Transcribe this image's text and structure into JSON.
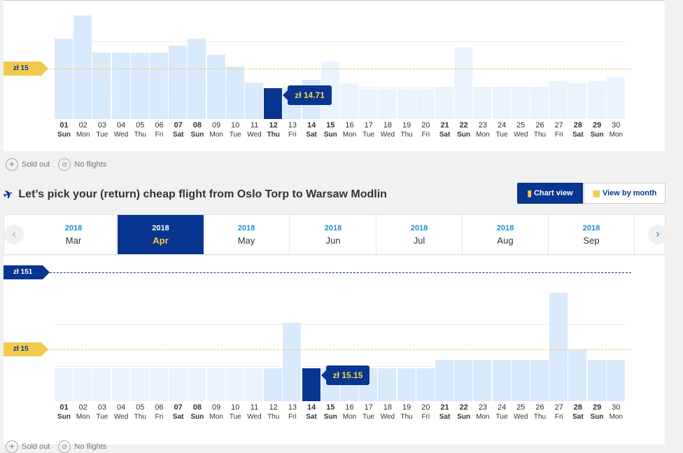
{
  "chart_data": [
    {
      "type": "bar",
      "categories": [
        "01",
        "02",
        "03",
        "04",
        "05",
        "06",
        "07",
        "08",
        "09",
        "10",
        "11",
        "12",
        "13",
        "14",
        "15",
        "16",
        "17",
        "18",
        "19",
        "20",
        "21",
        "22",
        "23",
        "24",
        "25",
        "26",
        "27",
        "28",
        "29",
        "30"
      ],
      "day_names": [
        "Sun",
        "Mon",
        "Tue",
        "Wed",
        "Thu",
        "Fri",
        "Sat",
        "Sun",
        "Mon",
        "Tue",
        "Wed",
        "Thu",
        "Fri",
        "Sat",
        "Sun",
        "Mon",
        "Tue",
        "Wed",
        "Thu",
        "Fri",
        "Sat",
        "Sun",
        "Mon",
        "Tue",
        "Wed",
        "Thu",
        "Fri",
        "Sat",
        "Sun",
        "Mon"
      ],
      "values": [
        35,
        45,
        29,
        29,
        29,
        29,
        32,
        35,
        28,
        23,
        16,
        13.5,
        13.5,
        17,
        25,
        15.5,
        13.2,
        13.2,
        13.2,
        13.2,
        14,
        31,
        14,
        14,
        14,
        14,
        16.5,
        15.5,
        16.5,
        18
      ],
      "selected_index": 11,
      "tooltip": "zł 14.71",
      "reference_label": "zł 15",
      "reference_value": 22,
      "ylim": [
        0,
        50
      ]
    },
    {
      "type": "bar",
      "categories": [
        "01",
        "02",
        "03",
        "04",
        "05",
        "06",
        "07",
        "08",
        "09",
        "10",
        "11",
        "12",
        "13",
        "14",
        "15",
        "16",
        "17",
        "18",
        "19",
        "20",
        "21",
        "22",
        "23",
        "24",
        "25",
        "26",
        "27",
        "28",
        "29",
        "30"
      ],
      "day_names": [
        "Sun",
        "Mon",
        "Tue",
        "Wed",
        "Thu",
        "Fri",
        "Sat",
        "Sun",
        "Mon",
        "Tue",
        "Wed",
        "Thu",
        "Fri",
        "Sat",
        "Sun",
        "Mon",
        "Tue",
        "Wed",
        "Thu",
        "Fri",
        "Sat",
        "Sun",
        "Mon",
        "Tue",
        "Wed",
        "Thu",
        "Fri",
        "Sat",
        "Sun",
        "Mon"
      ],
      "values": [
        15,
        15,
        15,
        15,
        15,
        15,
        15,
        15,
        15,
        15,
        15,
        15,
        36,
        15,
        15,
        15,
        15,
        15,
        15,
        15,
        19,
        19,
        19,
        19,
        19,
        19,
        50,
        24,
        19,
        19
      ],
      "selected_index": 13,
      "tooltip": "zł 15.15",
      "reference_label": "zł 15",
      "reference_value": 24,
      "top_label": "zł 151",
      "ylim": [
        0,
        58
      ]
    }
  ],
  "legend": {
    "sold_out": "Sold out",
    "no_flights": "No flights"
  },
  "heading": "Let’s pick your (return) cheap flight from Oslo Torp to Warsaw Modlin",
  "buttons": {
    "chart_view": "Chart view",
    "view_by_month": "View by month"
  },
  "months": [
    {
      "year": "2018",
      "month": "Mar"
    },
    {
      "year": "2018",
      "month": "Apr",
      "selected": true
    },
    {
      "year": "2018",
      "month": "May"
    },
    {
      "year": "2018",
      "month": "Jun"
    },
    {
      "year": "2018",
      "month": "Jul"
    },
    {
      "year": "2018",
      "month": "Aug"
    },
    {
      "year": "2018",
      "month": "Sep"
    }
  ],
  "colors": {
    "navy": "#073590",
    "yellow": "#f2c94c",
    "bar_normal": "#daeafd",
    "bar_pale": "#eaf3fe",
    "link_blue": "#1a8ad4"
  }
}
